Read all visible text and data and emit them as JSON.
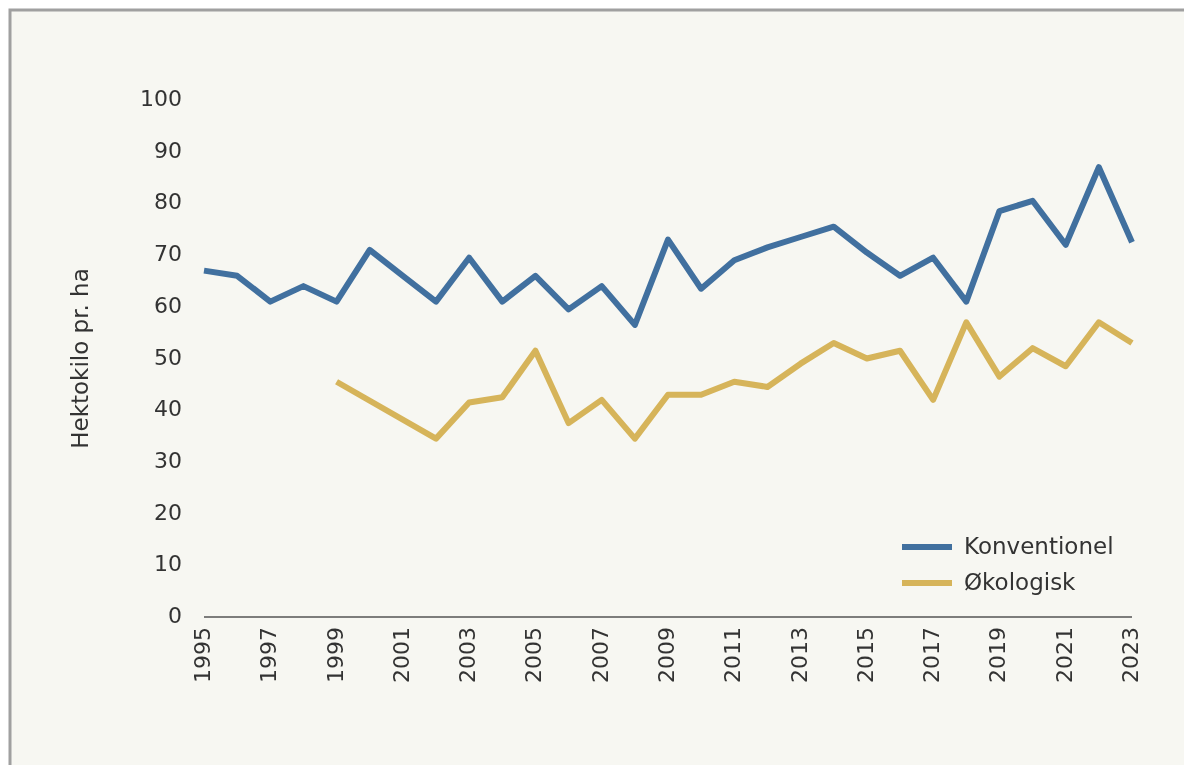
{
  "chart_data": {
    "type": "line",
    "ylabel": "Hektokilo pr. ha",
    "xlim": [
      1995,
      2023
    ],
    "xticks": [
      1995,
      1997,
      1999,
      2001,
      2003,
      2005,
      2007,
      2009,
      2011,
      2013,
      2015,
      2017,
      2019,
      2021,
      2023
    ],
    "ylim": [
      0,
      100
    ],
    "yticks": [
      0,
      10,
      20,
      30,
      40,
      50,
      60,
      70,
      80,
      90,
      100
    ],
    "grid": false,
    "legend": "bottom right",
    "line_style": "solid",
    "series": [
      {
        "name": "Konventionel",
        "color": "#41709f",
        "x": [
          1995,
          1996,
          1997,
          1998,
          1999,
          2000,
          2001,
          2002,
          2003,
          2004,
          2005,
          2006,
          2007,
          2008,
          2009,
          2010,
          2011,
          2012,
          2013,
          2014,
          2015,
          2016,
          2017,
          2018,
          2019,
          2020,
          2021,
          2022,
          2023
        ],
        "values": [
          67,
          66,
          61,
          64,
          61,
          71,
          66,
          61,
          69.5,
          61,
          66,
          59.5,
          64,
          56.5,
          73,
          63.5,
          69,
          71.5,
          73.5,
          75.5,
          70.5,
          66,
          69.5,
          61,
          78.5,
          80.5,
          72,
          87,
          72.5
        ]
      },
      {
        "name": "Økologisk",
        "color": "#d6b45a",
        "x": [
          1999,
          2002,
          2003,
          2004,
          2005,
          2006,
          2007,
          2008,
          2009,
          2010,
          2011,
          2012,
          2013,
          2014,
          2015,
          2016,
          2017,
          2018,
          2019,
          2020,
          2021,
          2022,
          2023
        ],
        "values": [
          45.5,
          34.5,
          41.5,
          42.5,
          51.5,
          37.5,
          42,
          34.5,
          43,
          43,
          45.5,
          44.5,
          49,
          53,
          50,
          51.5,
          42,
          57,
          46.5,
          52,
          48.5,
          57,
          53
        ]
      }
    ]
  }
}
